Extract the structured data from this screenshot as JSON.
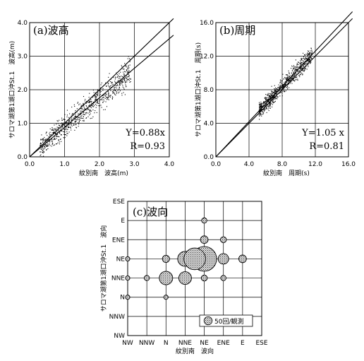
{
  "chart_data": [
    {
      "type": "scatter",
      "title": "(a)波高",
      "xlabel": "紋別南　波高(m)",
      "ylabel": "サロマ湖第1湖口沖St.1　波高(m)",
      "xlim": [
        0,
        4
      ],
      "ylim": [
        0,
        4
      ],
      "xticks": [
        "0.0",
        "1.0",
        "2.0",
        "3.0",
        "4.0"
      ],
      "yticks": [
        "0.0",
        "1.0",
        "2.0",
        "3.0",
        "4.0"
      ],
      "grid": true,
      "annotations": [
        "Y=0.88x",
        "R=0.93"
      ],
      "lines": [
        {
          "name": "1:1",
          "slope": 1.0
        },
        {
          "name": "regression",
          "slope": 0.88
        }
      ],
      "cloud": {
        "slope": 0.88,
        "x_range": [
          0.3,
          2.9
        ],
        "spread": 0.22,
        "n_approx": 800
      }
    },
    {
      "type": "scatter",
      "title": "(b)周期",
      "xlabel": "紋別南　周期(s)",
      "ylabel": "サロマ湖第1湖口沖St.1　周期(s)",
      "xlim": [
        0,
        16
      ],
      "ylim": [
        0,
        16
      ],
      "xticks": [
        "0.0",
        "4.0",
        "8.0",
        "12.0",
        "16.0"
      ],
      "yticks": [
        "0.0",
        "4.0",
        "8.0",
        "12.0",
        "16.0"
      ],
      "grid": true,
      "annotations": [
        "Y=1.05 x",
        "R=0.81"
      ],
      "lines": [
        {
          "name": "1:1",
          "slope": 1.0
        },
        {
          "name": "regression",
          "slope": 1.05
        }
      ],
      "cloud": {
        "slope": 1.05,
        "x_range": [
          5.2,
          11.6
        ],
        "spread": 0.55,
        "n_approx": 800
      }
    },
    {
      "type": "scatter",
      "title": "(c)波向",
      "xlabel": "紋別南　波向",
      "ylabel": "サロマ湖第1湖口沖St.1　波向",
      "x_categories": [
        "NW",
        "NNW",
        "N",
        "NNE",
        "NE",
        "ENE",
        "E",
        "ESE"
      ],
      "y_categories": [
        "NW",
        "NNW",
        "N",
        "NNE",
        "NE",
        "ENE",
        "E",
        "ESE"
      ],
      "grid": true,
      "legend": {
        "label": "50回/観測",
        "count": 50,
        "position": "bottom-right"
      },
      "bubbles": [
        {
          "x": "N",
          "y": "NNE",
          "count": 25
        },
        {
          "x": "NNE",
          "y": "NNE",
          "count": 22
        },
        {
          "x": "N",
          "y": "NE",
          "count": 5
        },
        {
          "x": "NNE",
          "y": "NE",
          "count": 32
        },
        {
          "x": "NE",
          "y": "NE",
          "count": 100
        },
        {
          "x": "NNE+",
          "y": "NE",
          "count": 75
        },
        {
          "x": "ENE",
          "y": "NE",
          "count": 14
        },
        {
          "x": "E",
          "y": "NE",
          "count": 6
        },
        {
          "x": "NE",
          "y": "ENE",
          "count": 6
        },
        {
          "x": "ENE",
          "y": "ENE",
          "count": 3
        },
        {
          "x": "NE",
          "y": "E",
          "count": 2
        },
        {
          "x": "NW",
          "y": "NE",
          "count": 1
        },
        {
          "x": "NW",
          "y": "NNE",
          "count": 1
        },
        {
          "x": "NNW",
          "y": "NNE",
          "count": 2
        },
        {
          "x": "NE",
          "y": "NNE",
          "count": 3
        },
        {
          "x": "ENE",
          "y": "NNE",
          "count": 2
        },
        {
          "x": "NW",
          "y": "N",
          "count": 1
        },
        {
          "x": "N",
          "y": "N",
          "count": 1
        }
      ]
    }
  ]
}
